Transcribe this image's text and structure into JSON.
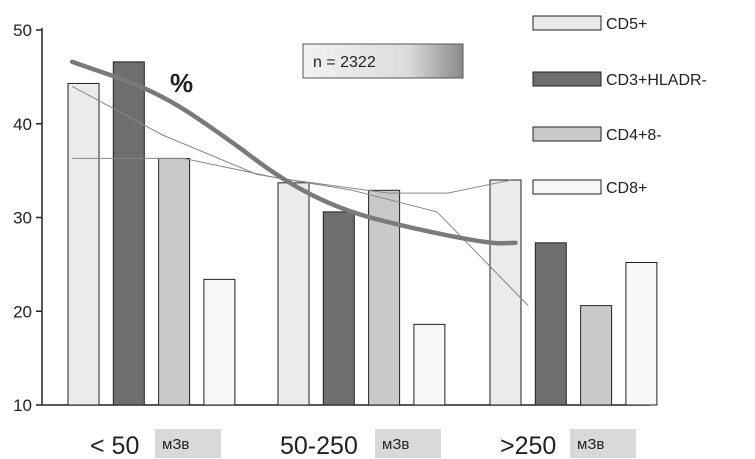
{
  "chart_data": {
    "type": "bar",
    "categories": [
      "< 50",
      "50-250",
      ">250"
    ],
    "unit_label": "мЗв",
    "ylim": [
      10,
      50
    ],
    "yticks": [
      "10",
      "20",
      "30",
      "40",
      "50"
    ],
    "series": [
      {
        "name": "CD5+",
        "color": "#ebebeb",
        "values": [
          44.3,
          33.7,
          34.0
        ]
      },
      {
        "name": "CD3+HLADR-",
        "color": "#6e6e6e",
        "values": [
          46.6,
          30.6,
          27.3
        ]
      },
      {
        "name": "CD4+8-",
        "color": "#c9c9c9",
        "values": [
          36.3,
          32.9,
          20.6
        ]
      },
      {
        "name": "CD8+",
        "color": "#f7f7f7",
        "values": [
          23.4,
          18.6,
          25.2
        ]
      }
    ],
    "annotation_n": "n = 2322",
    "annotation_percent": "%",
    "trend_line": {
      "x": [
        0.02,
        0.42,
        0.75,
        1.02,
        1.3,
        1.62,
        2.0,
        2.12
      ],
      "y": [
        46.6,
        43.5,
        38.6,
        34.0,
        30.8,
        28.9,
        27.2,
        27.3
      ]
    },
    "thin_lines": [
      {
        "x": [
          0.02,
          0.45,
          0.9,
          1.35,
          1.75,
          2.18
        ],
        "y": [
          44.0,
          38.8,
          34.6,
          32.9,
          30.6,
          20.6
        ]
      },
      {
        "x": [
          0.02,
          0.55,
          1.0,
          1.52,
          1.8,
          2.1
        ],
        "y": [
          36.3,
          36.3,
          34.2,
          32.6,
          32.6,
          34.0
        ]
      }
    ]
  }
}
